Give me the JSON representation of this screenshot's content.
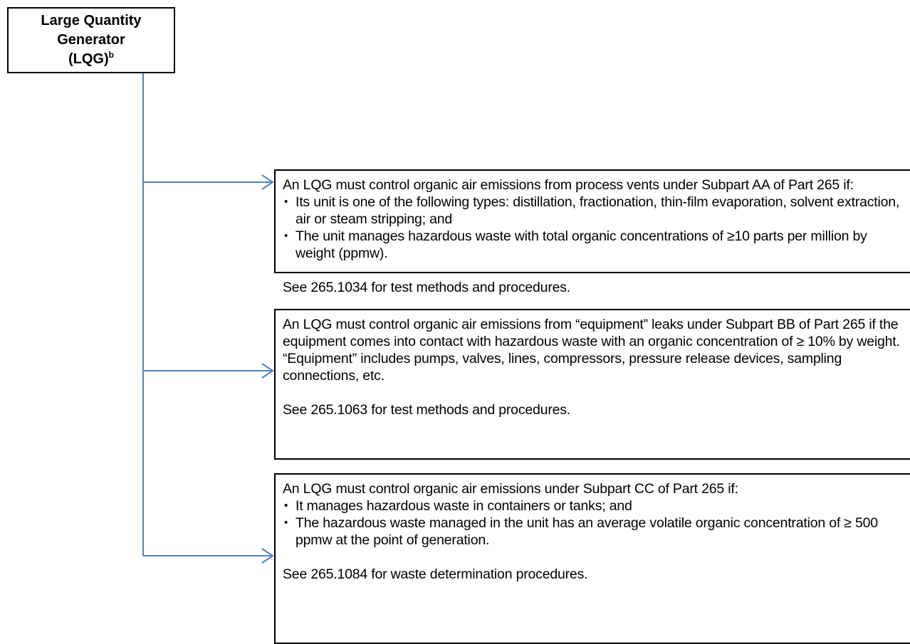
{
  "root": {
    "label": "Large Quantity Generator",
    "label_line2": "(LQG)",
    "superscript": "b"
  },
  "nodes": [
    {
      "intro": "An LQG must control organic air emissions from process vents under Subpart AA of Part 265 if:",
      "bullets": [
        "Its unit is one of the following types: distillation, fractionation, thin-film evaporation, solvent extraction, air or steam stripping; and",
        "The unit manages hazardous waste with total organic concentrations of ≥10 parts per million by weight (ppmw)."
      ],
      "see": "See 265.1034 for test methods and procedures."
    },
    {
      "intro": "An LQG must control organic air emissions from “equipment” leaks under Subpart BB of Part 265 if the equipment comes into contact with hazardous waste with an organic concentration of ≥ 10% by weight. “Equipment” includes pumps, valves, lines, compressors, pressure release devices, sampling connections, etc.",
      "bullets": [],
      "see": "See 265.1063 for test methods and procedures."
    },
    {
      "intro": "An LQG must control organic air emissions under Subpart CC of Part 265 if:",
      "bullets": [
        "It manages hazardous waste in containers or tanks; and",
        "The hazardous waste managed in the unit has an average volatile organic concentration of ≥ 500 ppmw at the point of generation."
      ],
      "see": "See 265.1084 for waste determination procedures."
    }
  ]
}
